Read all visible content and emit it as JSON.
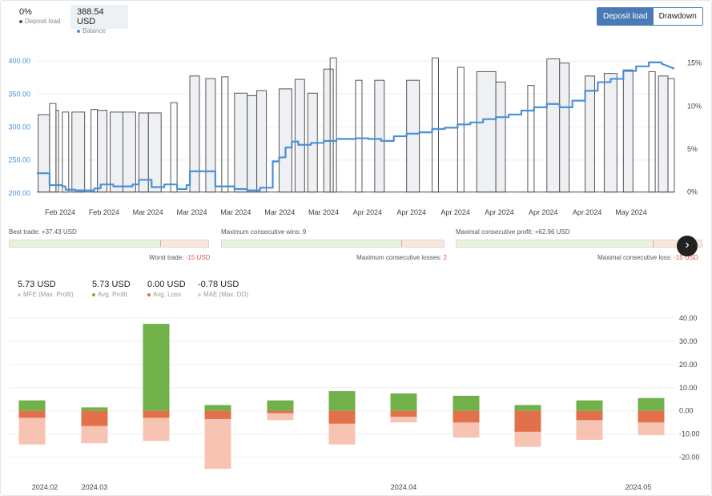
{
  "stats": {
    "deposit": {
      "value": "0%",
      "label": "Deposit load"
    },
    "balance": {
      "value": "388.54 USD",
      "label": "Balance"
    }
  },
  "toggle": {
    "deposit_load": "Deposit load",
    "drawdown": "Drawdown"
  },
  "colors": {
    "balance": "#4a90d9",
    "deposit": "#666666",
    "mfe": "#c5dba8",
    "avg_profit": "#72b04a",
    "avg_loss": "#e2704a",
    "mae": "#f7c4b3"
  },
  "trades": {
    "best": "Best trade: +37.43 USD",
    "worst_label": "Worst trade:",
    "worst_value": "-15 USD",
    "max_wins": "Maximum consecutive wins: 9",
    "max_losses_label": "Maximum consecutive losses:",
    "max_losses_value": "2",
    "max_profit": "Maximal consecutive profit: +62.96 USD",
    "max_loss_label": "Maximal consecutive loss:",
    "max_loss_value": "-15 USD",
    "fill_ratios": [
      0.76,
      0.81,
      0.8
    ]
  },
  "metrics": [
    {
      "value": "5.73 USD",
      "label": "MFE (Max. Profit)"
    },
    {
      "value": "5.73 USD",
      "label": "Avg. Profit"
    },
    {
      "value": "0.00 USD",
      "label": "Avg. Loss"
    },
    {
      "value": "-0.78 USD",
      "label": "MAE (Max. DD)"
    }
  ],
  "chart_data": [
    {
      "type": "line",
      "series": [
        {
          "name": "Balance",
          "axis": "left"
        },
        {
          "name": "Deposit load",
          "axis": "right"
        }
      ],
      "x_tick_labels": [
        "Feb 2024",
        "Feb 2024",
        "Mar 2024",
        "Mar 2024",
        "Mar 2024",
        "Mar 2024",
        "Mar 2024",
        "Apr 2024",
        "Apr 2024",
        "Apr 2024",
        "Apr 2024",
        "Apr 2024",
        "Apr 2024",
        "May 2024"
      ],
      "yleft_ticks": [
        "200.00",
        "250.00",
        "300.00",
        "350.00",
        "400.00"
      ],
      "yleft_lim": [
        195,
        410
      ],
      "yright_ticks": [
        "0%",
        "5%",
        "10%",
        "15%"
      ],
      "yright_lim": [
        -0.5,
        16
      ],
      "balance": [
        [
          0,
          230
        ],
        [
          0.02,
          230
        ],
        [
          0.02,
          212
        ],
        [
          0.04,
          212
        ],
        [
          0.04,
          210
        ],
        [
          0.045,
          210
        ],
        [
          0.045,
          205
        ],
        [
          0.06,
          205
        ],
        [
          0.06,
          204
        ],
        [
          0.09,
          204
        ],
        [
          0.09,
          207
        ],
        [
          0.1,
          207
        ],
        [
          0.1,
          213
        ],
        [
          0.12,
          213
        ],
        [
          0.12,
          210
        ],
        [
          0.15,
          210
        ],
        [
          0.15,
          213
        ],
        [
          0.16,
          213
        ],
        [
          0.16,
          220
        ],
        [
          0.18,
          220
        ],
        [
          0.18,
          209
        ],
        [
          0.2,
          209
        ],
        [
          0.2,
          213
        ],
        [
          0.22,
          213
        ],
        [
          0.22,
          206
        ],
        [
          0.235,
          206
        ],
        [
          0.235,
          212
        ],
        [
          0.24,
          212
        ],
        [
          0.24,
          233
        ],
        [
          0.28,
          233
        ],
        [
          0.28,
          210
        ],
        [
          0.31,
          210
        ],
        [
          0.31,
          206
        ],
        [
          0.33,
          206
        ],
        [
          0.33,
          204
        ],
        [
          0.35,
          204
        ],
        [
          0.35,
          208
        ],
        [
          0.37,
          208
        ],
        [
          0.37,
          248
        ],
        [
          0.38,
          248
        ],
        [
          0.38,
          254
        ],
        [
          0.39,
          254
        ],
        [
          0.39,
          269
        ],
        [
          0.4,
          269
        ],
        [
          0.4,
          278
        ],
        [
          0.41,
          278
        ],
        [
          0.41,
          273
        ],
        [
          0.43,
          273
        ],
        [
          0.43,
          276
        ],
        [
          0.45,
          276
        ],
        [
          0.45,
          279
        ],
        [
          0.47,
          279
        ],
        [
          0.47,
          282
        ],
        [
          0.5,
          282
        ],
        [
          0.5,
          283
        ],
        [
          0.52,
          283
        ],
        [
          0.52,
          282
        ],
        [
          0.54,
          282
        ],
        [
          0.54,
          279
        ],
        [
          0.56,
          279
        ],
        [
          0.56,
          286
        ],
        [
          0.58,
          286
        ],
        [
          0.58,
          290
        ],
        [
          0.6,
          290
        ],
        [
          0.6,
          292
        ],
        [
          0.62,
          292
        ],
        [
          0.62,
          297
        ],
        [
          0.64,
          297
        ],
        [
          0.64,
          299
        ],
        [
          0.66,
          299
        ],
        [
          0.66,
          304
        ],
        [
          0.68,
          304
        ],
        [
          0.68,
          307
        ],
        [
          0.7,
          307
        ],
        [
          0.7,
          312
        ],
        [
          0.72,
          312
        ],
        [
          0.72,
          315
        ],
        [
          0.74,
          315
        ],
        [
          0.74,
          319
        ],
        [
          0.76,
          319
        ],
        [
          0.76,
          325
        ],
        [
          0.78,
          325
        ],
        [
          0.78,
          330
        ],
        [
          0.8,
          330
        ],
        [
          0.8,
          335
        ],
        [
          0.82,
          335
        ],
        [
          0.82,
          330
        ],
        [
          0.84,
          330
        ],
        [
          0.84,
          340
        ],
        [
          0.86,
          340
        ],
        [
          0.86,
          355
        ],
        [
          0.88,
          355
        ],
        [
          0.88,
          368
        ],
        [
          0.9,
          368
        ],
        [
          0.9,
          373
        ],
        [
          0.92,
          373
        ],
        [
          0.92,
          385
        ],
        [
          0.94,
          385
        ],
        [
          0.94,
          392
        ],
        [
          0.96,
          392
        ],
        [
          0.96,
          398
        ],
        [
          0.98,
          398
        ],
        [
          0.98,
          396
        ],
        [
          1.0,
          388.54
        ]
      ],
      "deposit_note": "Deposit load spikes between 0% and ~15% throughout the period"
    },
    {
      "type": "bar",
      "categories": [
        "",
        "",
        "",
        "",
        "",
        "",
        "",
        "",
        "",
        "",
        ""
      ],
      "x_tick_labels": [
        "2024.02",
        "2024.03",
        "2024.04",
        "2024.05"
      ],
      "y_ticks": [
        "40.00",
        "30.00",
        "20.00",
        "10.00",
        "0.00",
        "-10.00",
        "-20.00"
      ],
      "ylim": [
        -26,
        41
      ],
      "series": [
        {
          "name": "MFE (Max. Profit)",
          "values": [
            3.5,
            1.5,
            37.5,
            3,
            5,
            9,
            7.5,
            6.5,
            2.5,
            4.5,
            5.5
          ]
        },
        {
          "name": "Avg. Profit",
          "values": [
            4.5,
            1.5,
            37.5,
            2.5,
            4.5,
            8.5,
            7.5,
            6.5,
            2.5,
            4.5,
            5.5
          ]
        },
        {
          "name": "Avg. Loss",
          "values": [
            -3,
            -6.5,
            -3,
            -3.5,
            -1,
            -5.5,
            -2.5,
            -5,
            -9,
            -4,
            -5
          ]
        },
        {
          "name": "MAE (Max. DD)",
          "values": [
            -14.5,
            -14,
            -13,
            -25,
            -4,
            -14.5,
            -5,
            -11.5,
            -15.5,
            -12.5,
            -10.5
          ]
        }
      ]
    }
  ]
}
